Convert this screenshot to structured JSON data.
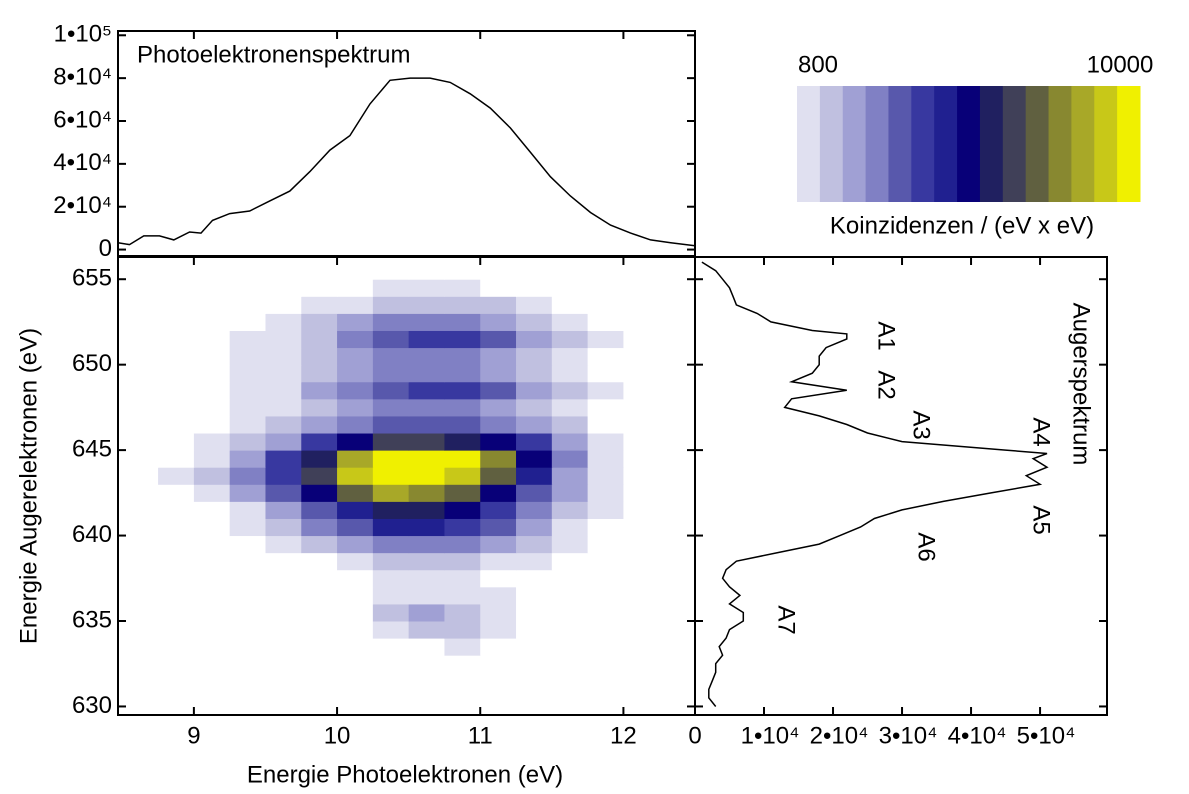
{
  "chart_data": [
    {
      "type": "line",
      "title": "Photoelektronenspektrum",
      "color": "#000000",
      "x": [
        8.47,
        8.55,
        8.65,
        8.76,
        8.86,
        8.97,
        9.05,
        9.13,
        9.25,
        9.39,
        9.53,
        9.67,
        9.81,
        9.95,
        10.09,
        10.23,
        10.37,
        10.51,
        10.65,
        10.79,
        10.93,
        11.07,
        11.21,
        11.35,
        11.49,
        11.63,
        11.77,
        11.91,
        12.05,
        12.19,
        12.33,
        12.5
      ],
      "values": [
        3200,
        2300,
        6400,
        6400,
        4500,
        8200,
        7700,
        13600,
        16800,
        18000,
        22700,
        27300,
        36400,
        46400,
        53200,
        68000,
        79000,
        80000,
        80000,
        78000,
        72700,
        66000,
        56800,
        45500,
        34000,
        25000,
        17300,
        11400,
        7700,
        4500,
        3200,
        1800
      ],
      "xlim": [
        8.47,
        12.5
      ],
      "ylim": [
        -3000,
        102000
      ],
      "yticks": [
        0,
        {
          "value": 20000,
          "label": "2•10⁴"
        },
        {
          "value": 40000,
          "label": "4•10⁴"
        },
        {
          "value": 60000,
          "label": "6•10⁴"
        },
        {
          "value": 80000,
          "label": "8•10⁴"
        },
        {
          "value": 100000,
          "label": "1•10⁵"
        }
      ]
    },
    {
      "type": "heatmap",
      "xlabel": "Energie Photoelektronen (eV)",
      "ylabel": "Energie Augerelektronen (eV)",
      "xlim": [
        8.47,
        12.5
      ],
      "ylim": [
        629.5,
        656.3
      ],
      "xticks": [
        9,
        10,
        11,
        12
      ],
      "yticks": [
        630,
        635,
        640,
        645,
        650,
        655
      ],
      "xbins": [
        8.5,
        8.75,
        9,
        9.25,
        9.5,
        9.75,
        10,
        10.25,
        10.5,
        10.75,
        11,
        11.25,
        11.5,
        11.75,
        12,
        12.25,
        12.5
      ],
      "ybins": [
        630,
        631,
        632,
        633,
        634,
        635,
        636,
        637,
        638,
        639,
        640,
        641,
        642,
        643,
        644,
        645,
        646,
        647,
        648,
        649,
        650,
        651,
        652,
        653,
        654,
        655,
        656
      ],
      "values": [
        [
          0,
          0,
          0,
          0,
          0,
          0,
          0,
          0,
          0,
          0,
          0,
          0,
          0,
          0,
          0,
          0
        ],
        [
          0,
          0,
          0,
          0,
          0,
          0,
          0,
          0,
          0,
          0,
          0,
          0,
          0,
          0,
          0,
          0
        ],
        [
          0,
          0,
          0,
          0,
          0,
          0,
          0,
          0,
          0,
          0,
          0,
          0,
          0,
          0,
          0,
          0
        ],
        [
          0,
          0,
          0,
          0,
          0,
          0,
          0,
          0,
          600,
          900,
          500,
          0,
          0,
          0,
          0,
          0
        ],
        [
          0,
          0,
          0,
          0,
          0,
          0,
          0,
          1200,
          1500,
          1500,
          1000,
          400,
          0,
          0,
          0,
          0
        ],
        [
          0,
          0,
          0,
          0,
          0,
          0,
          0,
          2000,
          2200,
          2000,
          1400,
          600,
          0,
          0,
          0,
          0
        ],
        [
          0,
          0,
          0,
          0,
          0,
          0,
          0,
          800,
          1200,
          1100,
          900,
          400,
          0,
          0,
          0,
          0
        ],
        [
          0,
          0,
          0,
          0,
          0,
          0,
          500,
          900,
          1000,
          900,
          700,
          300,
          0,
          0,
          0,
          0
        ],
        [
          0,
          0,
          0,
          0,
          0,
          600,
          1200,
          1600,
          1800,
          1600,
          1200,
          800,
          400,
          0,
          0,
          0
        ],
        [
          0,
          0,
          0,
          500,
          900,
          1600,
          2200,
          2800,
          3000,
          2800,
          2200,
          1600,
          900,
          400,
          0,
          0
        ],
        [
          0,
          0,
          400,
          900,
          1800,
          2800,
          3800,
          4600,
          4800,
          4400,
          3400,
          2400,
          1400,
          700,
          0,
          0
        ],
        [
          0,
          400,
          700,
          1400,
          2600,
          3800,
          5000,
          5800,
          6000,
          5600,
          4400,
          3000,
          1800,
          900,
          300,
          0
        ],
        [
          300,
          600,
          1200,
          2200,
          3600,
          5200,
          7000,
          8200,
          8000,
          7200,
          5600,
          3600,
          2200,
          1000,
          400,
          0
        ],
        [
          500,
          800,
          1600,
          2800,
          4400,
          6400,
          8800,
          9800,
          9600,
          9200,
          7400,
          4800,
          2600,
          1200,
          500,
          0
        ],
        [
          400,
          700,
          1400,
          2600,
          4000,
          6000,
          8600,
          10000,
          10000,
          9600,
          8000,
          5200,
          2800,
          1300,
          500,
          0
        ],
        [
          200,
          400,
          900,
          1600,
          2600,
          4000,
          5600,
          6400,
          6600,
          6200,
          5400,
          4000,
          2400,
          1200,
          400,
          0
        ],
        [
          0,
          300,
          500,
          900,
          1500,
          2200,
          3000,
          3600,
          3800,
          3600,
          3200,
          2400,
          1500,
          700,
          200,
          0
        ],
        [
          0,
          300,
          400,
          800,
          1200,
          1800,
          2400,
          3000,
          3200,
          3000,
          2600,
          2000,
          1200,
          600,
          0,
          0
        ],
        [
          0,
          300,
          500,
          900,
          1400,
          2200,
          3000,
          3800,
          4200,
          4000,
          3400,
          2600,
          1600,
          800,
          300,
          0
        ],
        [
          0,
          300,
          400,
          800,
          1200,
          1800,
          2400,
          3000,
          3200,
          3000,
          2600,
          2000,
          1200,
          600,
          0,
          0
        ],
        [
          300,
          400,
          500,
          800,
          1100,
          1600,
          2200,
          2800,
          3000,
          2800,
          2400,
          1800,
          1200,
          600,
          200,
          0
        ],
        [
          300,
          500,
          600,
          900,
          1300,
          2000,
          2800,
          3600,
          4200,
          4000,
          3400,
          2600,
          1600,
          800,
          300,
          0
        ],
        [
          0,
          300,
          500,
          700,
          1000,
          1500,
          2200,
          2800,
          3200,
          3000,
          2600,
          2000,
          1300,
          600,
          200,
          0
        ],
        [
          0,
          0,
          300,
          400,
          600,
          900,
          1400,
          1800,
          2000,
          1800,
          1500,
          1100,
          700,
          300,
          0,
          0
        ],
        [
          0,
          0,
          0,
          0,
          300,
          400,
          600,
          800,
          900,
          800,
          600,
          400,
          0,
          0,
          0,
          0
        ],
        [
          0,
          0,
          0,
          0,
          0,
          0,
          0,
          0,
          0,
          0,
          0,
          0,
          0,
          0,
          0,
          0
        ]
      ],
      "colorbar": {
        "label": "Koinzidenzen / (eV x eV)",
        "range": [
          800,
          10000
        ],
        "colors": [
          "#e0e0f0",
          "#c0c0e0",
          "#a0a0d4",
          "#8080c4",
          "#5858ac",
          "#3838a0",
          "#202090",
          "#080078",
          "#202060",
          "#404058",
          "#606040",
          "#888830",
          "#a8a828",
          "#c8c818",
          "#f0f000"
        ]
      }
    },
    {
      "type": "line",
      "orientation": "horizontal",
      "title": "Augerspektrum",
      "color": "#000000",
      "annotations": [
        "A1",
        "A2",
        "A3",
        "A4",
        "A5",
        "A6",
        "A7"
      ],
      "x": [
        656,
        655.5,
        655,
        654.5,
        654,
        653.5,
        653,
        652.5,
        652,
        651.8,
        651.5,
        651,
        650.5,
        650,
        649.5,
        649,
        648.5,
        648,
        647.5,
        647,
        646.5,
        646,
        645.5,
        645,
        644.8,
        644.5,
        644,
        643.5,
        643,
        642.5,
        642,
        641.5,
        641,
        640.5,
        640,
        639.5,
        639,
        638.5,
        638,
        637.5,
        637,
        636.5,
        636,
        635.5,
        635,
        634.5,
        634,
        633.5,
        633,
        632.5,
        632,
        631.5,
        631,
        630.5,
        630
      ],
      "values": [
        1000,
        3000,
        4000,
        5000,
        5500,
        6000,
        9000,
        11000,
        17000,
        22000,
        22000,
        19000,
        18000,
        18000,
        17000,
        14000,
        22000,
        14000,
        13000,
        18000,
        22000,
        25000,
        30000,
        45000,
        51000,
        49000,
        51000,
        48000,
        50000,
        43000,
        36000,
        30000,
        26000,
        24000,
        21000,
        18000,
        12000,
        6000,
        4500,
        4000,
        5000,
        6500,
        5000,
        7000,
        7000,
        5000,
        4500,
        3500,
        4000,
        3000,
        3000,
        2500,
        2000,
        2000,
        3000
      ],
      "xlim": [
        0,
        59700
      ],
      "ylim": [
        629.5,
        656.3
      ],
      "xticks": [
        0,
        {
          "value": 10000,
          "label": "1•10⁴"
        },
        {
          "value": 20000,
          "label": "2•10⁴"
        },
        {
          "value": 30000,
          "label": "3•10⁴"
        },
        {
          "value": 40000,
          "label": "4•10⁴"
        },
        {
          "value": 50000,
          "label": "5•10⁴"
        }
      ]
    }
  ]
}
